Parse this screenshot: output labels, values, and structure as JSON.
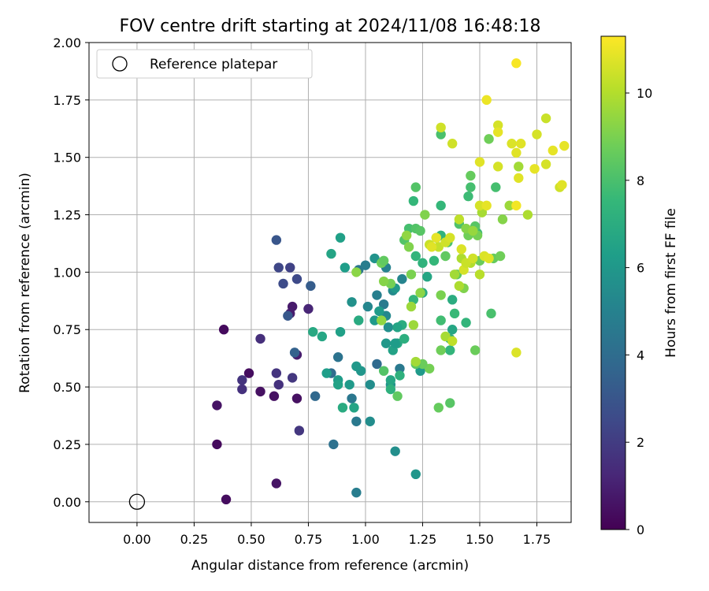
{
  "chart_data": {
    "type": "scatter",
    "title": "FOV centre drift starting at 2024/11/08 16:48:18",
    "xlabel": "Angular distance from reference (arcmin)",
    "ylabel": "Rotation from reference (arcmin)",
    "xlim": [
      -0.21,
      1.9
    ],
    "ylim": [
      -0.09,
      2.0
    ],
    "xticks": [
      "0.00",
      "0.25",
      "0.50",
      "0.75",
      "1.00",
      "1.25",
      "1.50",
      "1.75"
    ],
    "yticks": [
      "0.00",
      "0.25",
      "0.50",
      "0.75",
      "1.00",
      "1.25",
      "1.50",
      "1.75",
      "2.00"
    ],
    "grid": true,
    "legend": {
      "position": "top-left",
      "entries": [
        "Reference platepar"
      ]
    },
    "reference_point": {
      "x": 0.0,
      "y": 0.0
    },
    "colorbar": {
      "label": "Hours from first FF file",
      "colormap": "viridis",
      "range": [
        0,
        11.3
      ],
      "ticks": [
        "0",
        "2",
        "4",
        "6",
        "8",
        "10"
      ]
    },
    "series": [
      {
        "points": [
          [
            0.39,
            0.01,
            0.4
          ],
          [
            0.38,
            0.75,
            0.3
          ],
          [
            0.35,
            0.25,
            0.3
          ],
          [
            0.35,
            0.42,
            0.6
          ],
          [
            0.49,
            0.56,
            0.4
          ],
          [
            0.54,
            0.48,
            0.5
          ],
          [
            0.6,
            0.46,
            0.5
          ],
          [
            0.61,
            0.08,
            0.6
          ],
          [
            0.7,
            0.45,
            0.5
          ],
          [
            0.68,
            0.85,
            0.8
          ],
          [
            0.7,
            0.64,
            0.9
          ],
          [
            0.67,
            0.82,
            0.9
          ],
          [
            0.54,
            0.71,
            1.5
          ],
          [
            0.46,
            0.53,
            1.7
          ],
          [
            0.46,
            0.49,
            1.6
          ],
          [
            0.61,
            0.56,
            1.7
          ],
          [
            0.62,
            0.51,
            1.6
          ],
          [
            0.68,
            0.54,
            1.8
          ],
          [
            0.71,
            0.31,
            1.8
          ],
          [
            0.75,
            0.84,
            1.2
          ],
          [
            0.67,
            1.02,
            2.2
          ],
          [
            0.62,
            1.02,
            2.4
          ],
          [
            0.64,
            0.95,
            2.6
          ],
          [
            0.66,
            0.81,
            3.1
          ],
          [
            0.7,
            0.97,
            2.5
          ],
          [
            0.61,
            1.14,
            3.0
          ],
          [
            0.69,
            0.65,
            3.5
          ],
          [
            0.76,
            0.94,
            3.3
          ],
          [
            0.78,
            0.46,
            3.8
          ],
          [
            0.86,
            0.25,
            4.2
          ],
          [
            0.85,
            0.56,
            4.0
          ],
          [
            0.88,
            0.63,
            4.3
          ],
          [
            0.94,
            0.45,
            4.5
          ],
          [
            0.96,
            0.35,
            4.6
          ],
          [
            0.96,
            0.04,
            4.8
          ],
          [
            0.97,
            1.01,
            4.4
          ],
          [
            1.0,
            1.03,
            4.8
          ],
          [
            1.02,
            0.35,
            5.5
          ],
          [
            1.05,
            0.6,
            3.9
          ],
          [
            1.05,
            0.9,
            4.9
          ],
          [
            1.08,
            0.86,
            4.7
          ],
          [
            1.09,
            1.02,
            5.0
          ],
          [
            1.09,
            0.81,
            5.3
          ],
          [
            1.1,
            0.76,
            5.6
          ],
          [
            1.12,
            0.92,
            5.4
          ],
          [
            1.15,
            0.58,
            4.6
          ],
          [
            1.13,
            0.22,
            5.6
          ],
          [
            1.16,
            0.97,
            5.1
          ],
          [
            1.22,
            0.12,
            5.9
          ],
          [
            1.04,
            1.06,
            5.8
          ],
          [
            1.13,
            0.93,
            6.0
          ],
          [
            1.11,
            0.51,
            5.8
          ],
          [
            1.09,
            0.69,
            6.0
          ],
          [
            1.06,
            0.83,
            6.2
          ],
          [
            1.04,
            0.79,
            6.1
          ],
          [
            1.01,
            0.85,
            5.2
          ],
          [
            0.94,
            0.87,
            5.7
          ],
          [
            1.02,
            0.51,
            5.5
          ],
          [
            0.98,
            0.57,
            5.9
          ],
          [
            0.96,
            0.59,
            6.0
          ],
          [
            0.93,
            0.51,
            6.1
          ],
          [
            0.88,
            0.53,
            6.2
          ],
          [
            0.89,
            0.74,
            6.4
          ],
          [
            0.89,
            1.15,
            6.4
          ],
          [
            0.91,
            1.02,
            6.3
          ],
          [
            0.85,
            1.08,
            6.6
          ],
          [
            0.83,
            0.56,
            6.3
          ],
          [
            0.88,
            0.51,
            6.5
          ],
          [
            0.9,
            0.41,
            6.9
          ],
          [
            0.95,
            0.41,
            6.6
          ],
          [
            0.77,
            0.74,
            6.8
          ],
          [
            0.81,
            0.72,
            6.7
          ],
          [
            0.97,
            0.79,
            6.9
          ],
          [
            1.12,
            0.66,
            6.5
          ],
          [
            1.11,
            0.53,
            6.7
          ],
          [
            1.14,
            0.69,
            6.8
          ],
          [
            1.16,
            0.77,
            7.0
          ],
          [
            1.17,
            0.71,
            7.1
          ],
          [
            1.14,
            0.76,
            6.6
          ],
          [
            1.11,
            0.49,
            7.2
          ],
          [
            1.15,
            0.55,
            7.2
          ],
          [
            1.13,
            0.69,
            6.2
          ],
          [
            1.24,
            0.57,
            6.1
          ],
          [
            1.25,
            0.91,
            6.9
          ],
          [
            1.27,
            0.98,
            6.7
          ],
          [
            1.21,
            0.88,
            7.4
          ],
          [
            1.21,
            1.31,
            7.5
          ],
          [
            1.22,
            1.07,
            7.4
          ],
          [
            1.25,
            1.04,
            7.3
          ],
          [
            1.3,
            1.05,
            7.5
          ],
          [
            1.33,
            1.16,
            7.3
          ],
          [
            1.33,
            1.29,
            7.5
          ],
          [
            1.37,
            0.71,
            7.0
          ],
          [
            1.38,
            0.75,
            6.7
          ],
          [
            1.39,
            0.82,
            7.6
          ],
          [
            1.33,
            0.79,
            7.8
          ],
          [
            1.37,
            0.66,
            7.4
          ],
          [
            1.38,
            0.88,
            7.0
          ],
          [
            1.44,
            0.78,
            7.4
          ],
          [
            1.45,
            1.33,
            7.7
          ],
          [
            1.46,
            1.37,
            7.9
          ],
          [
            1.49,
            1.17,
            7.7
          ],
          [
            1.57,
            1.37,
            7.9
          ],
          [
            1.33,
            1.6,
            8.0
          ],
          [
            1.55,
            0.82,
            8.0
          ],
          [
            1.19,
            1.19,
            7.9
          ],
          [
            1.17,
            1.14,
            8.2
          ],
          [
            1.22,
            1.19,
            8.2
          ],
          [
            1.24,
            1.18,
            8.3
          ],
          [
            1.35,
            1.07,
            8.5
          ],
          [
            1.31,
            1.15,
            7.6
          ],
          [
            1.36,
            1.13,
            8.0
          ],
          [
            1.4,
            0.99,
            8.4
          ],
          [
            1.41,
            1.21,
            8.1
          ],
          [
            1.22,
            1.37,
            8.2
          ],
          [
            1.48,
            1.2,
            8.3
          ],
          [
            1.46,
            1.42,
            8.6
          ],
          [
            1.48,
            0.66,
            8.7
          ],
          [
            1.45,
            1.16,
            8.8
          ],
          [
            1.49,
            1.16,
            8.9
          ],
          [
            1.5,
            1.05,
            8.7
          ],
          [
            1.54,
            1.58,
            8.8
          ],
          [
            1.56,
            1.06,
            8.6
          ],
          [
            1.59,
            1.07,
            8.8
          ],
          [
            1.6,
            1.23,
            9.2
          ],
          [
            1.37,
            0.43,
            8.3
          ],
          [
            1.32,
            0.41,
            8.6
          ],
          [
            1.08,
            0.57,
            8.2
          ],
          [
            1.14,
            0.46,
            8.5
          ],
          [
            1.33,
            0.66,
            8.8
          ],
          [
            1.28,
            0.58,
            8.9
          ],
          [
            1.25,
            0.6,
            8.7
          ],
          [
            1.22,
            0.6,
            8.4
          ],
          [
            1.07,
            1.04,
            8.8
          ],
          [
            1.08,
            1.05,
            8.5
          ],
          [
            1.11,
            0.95,
            8.9
          ],
          [
            1.2,
            0.99,
            9.0
          ],
          [
            1.19,
            1.11,
            9.1
          ],
          [
            1.26,
            1.25,
            9.1
          ],
          [
            1.33,
            0.9,
            9.0
          ],
          [
            1.43,
            0.93,
            9.1
          ],
          [
            1.44,
            1.19,
            9.2
          ],
          [
            1.47,
            1.18,
            9.5
          ],
          [
            1.18,
            1.16,
            9.4
          ],
          [
            1.24,
            0.91,
            9.3
          ],
          [
            1.07,
            0.79,
            9.4
          ],
          [
            0.96,
            1.0,
            9.3
          ],
          [
            1.08,
            0.96,
            9.2
          ],
          [
            1.2,
            0.85,
            9.6
          ],
          [
            1.22,
            0.61,
            9.7
          ],
          [
            1.21,
            0.77,
            9.6
          ],
          [
            1.35,
            0.72,
            9.8
          ],
          [
            1.39,
            0.99,
            9.7
          ],
          [
            1.41,
            0.94,
            9.9
          ],
          [
            1.51,
            1.26,
            9.8
          ],
          [
            1.63,
            1.29,
            9.6
          ],
          [
            1.67,
            1.46,
            9.7
          ],
          [
            1.71,
            1.25,
            9.9
          ],
          [
            1.42,
            1.06,
            9.9
          ],
          [
            1.46,
            1.04,
            10.0
          ],
          [
            1.5,
            0.99,
            10.1
          ],
          [
            1.38,
            0.7,
            10.2
          ],
          [
            1.32,
            1.11,
            10.3
          ],
          [
            1.28,
            1.12,
            10.4
          ],
          [
            1.35,
            1.13,
            10.5
          ],
          [
            1.37,
            1.15,
            10.6
          ],
          [
            1.41,
            1.23,
            10.2
          ],
          [
            1.43,
            1.01,
            10.6
          ],
          [
            1.44,
            1.04,
            10.4
          ],
          [
            1.47,
            1.06,
            10.5
          ],
          [
            1.5,
            1.29,
            10.6
          ],
          [
            1.52,
            1.07,
            10.7
          ],
          [
            1.54,
            1.06,
            10.8
          ],
          [
            1.42,
            1.1,
            10.7
          ],
          [
            1.29,
            1.11,
            10.8
          ],
          [
            1.31,
            1.15,
            10.9
          ],
          [
            1.33,
            1.63,
            10.5
          ],
          [
            1.38,
            1.56,
            10.5
          ],
          [
            1.5,
            1.48,
            10.8
          ],
          [
            1.58,
            1.46,
            10.6
          ],
          [
            1.64,
            1.56,
            10.7
          ],
          [
            1.58,
            1.64,
            10.6
          ],
          [
            1.58,
            1.61,
            10.9
          ],
          [
            1.66,
            1.52,
            10.8
          ],
          [
            1.68,
            1.56,
            10.8
          ],
          [
            1.75,
            1.6,
            10.6
          ],
          [
            1.79,
            1.67,
            10.4
          ],
          [
            1.79,
            1.47,
            10.6
          ],
          [
            1.82,
            1.53,
            10.9
          ],
          [
            1.85,
            1.37,
            10.5
          ],
          [
            1.86,
            1.38,
            10.8
          ],
          [
            1.87,
            1.55,
            10.9
          ],
          [
            1.74,
            1.45,
            10.9
          ],
          [
            1.67,
            1.41,
            10.8
          ],
          [
            1.53,
            1.75,
            11.0
          ],
          [
            1.66,
            1.91,
            11.2
          ],
          [
            1.66,
            1.29,
            11.1
          ],
          [
            1.66,
            0.65,
            10.7
          ],
          [
            1.53,
            1.29,
            10.9
          ]
        ]
      }
    ]
  }
}
